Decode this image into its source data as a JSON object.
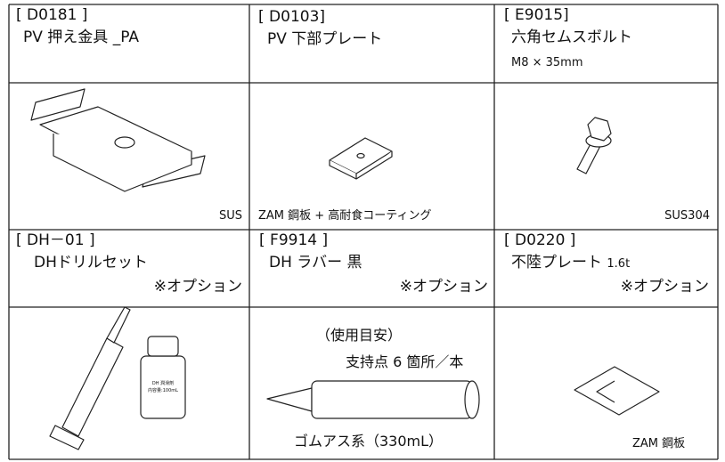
{
  "items": [
    {
      "code": "[ D0181 ]",
      "name": "PV 押え金具 _PA",
      "material": "SUS"
    },
    {
      "code": "[ D0103]",
      "name": "PV 下部プレート",
      "material": "ZAM 鋼板 + 高耐食コーティング"
    },
    {
      "code": "[ E9015]",
      "name": "六角セムスボルト",
      "spec": "M8 × 35mm",
      "material": "SUS304"
    },
    {
      "code": "[ DH－01 ]",
      "name": "DHドリルセット",
      "option": "※オプション",
      "bottle_label": [
        "DH 潤滑剤",
        "内容量:100mL"
      ]
    },
    {
      "code": "[ F9914 ]",
      "name": "DH ラバー 黒",
      "option": "※オプション",
      "usage_title": "（使用目安）",
      "usage": "支持点 6 箇所／本",
      "material": "ゴムアス系（330mL）"
    },
    {
      "code": "[ D0220 ]",
      "name": "不陸プレート",
      "spec": "1.6t",
      "option": "※オプション",
      "material": "ZAM 鋼板"
    }
  ]
}
